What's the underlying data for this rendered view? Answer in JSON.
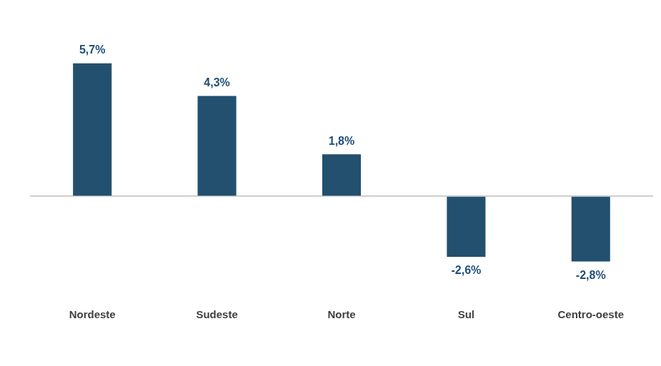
{
  "chart_data": {
    "type": "bar",
    "categories": [
      "Nordeste",
      "Sudeste",
      "Norte",
      "Sul",
      "Centro-oeste"
    ],
    "values": [
      5.7,
      4.3,
      1.8,
      -2.6,
      -2.8
    ],
    "value_labels": [
      "5,7%",
      "4,3%",
      "1,8%",
      "-2,6%",
      "-2,8%"
    ],
    "color": "#23506f",
    "data_labels": true,
    "tick_labels": "x",
    "grid": false
  }
}
